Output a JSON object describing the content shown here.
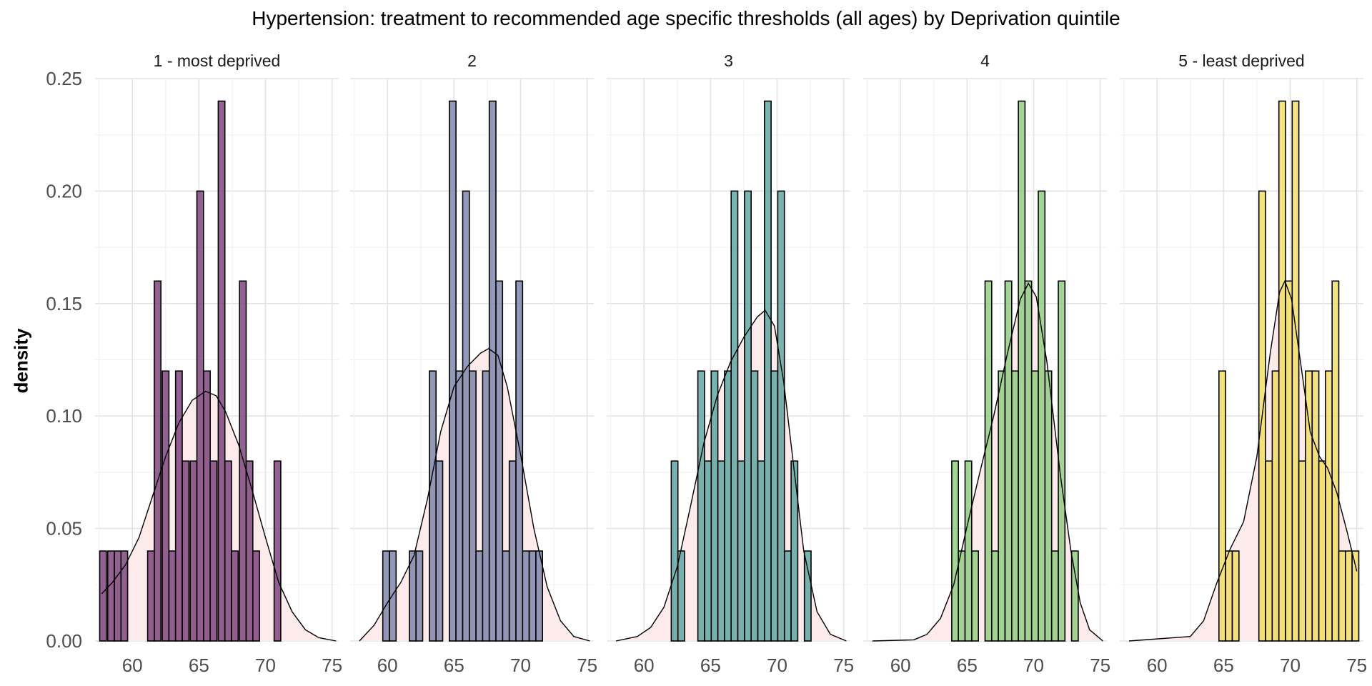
{
  "chart_data": {
    "type": "bar",
    "title": "Hypertension: treatment to recommended age specific thresholds (all ages) by Deprivation quintile",
    "xlabel": "",
    "ylabel": "density",
    "xlim": [
      57.2,
      75.5
    ],
    "ylim": [
      0,
      0.25
    ],
    "x_ticks": [
      "60",
      "65",
      "70",
      "75"
    ],
    "y_ticks": [
      "0.00",
      "0.05",
      "0.10",
      "0.15",
      "0.20",
      "0.25"
    ],
    "grid": true,
    "density_fill": "#fdeaea",
    "panels": [
      {
        "label": "1 - most deprived",
        "color": "#7a3f7a",
        "bins": [
          {
            "x": 57.8,
            "y": 0.04
          },
          {
            "x": 58.4,
            "y": 0.04
          },
          {
            "x": 58.9,
            "y": 0.04
          },
          {
            "x": 59.4,
            "y": 0.04
          },
          {
            "x": 61.4,
            "y": 0.04
          },
          {
            "x": 61.9,
            "y": 0.16
          },
          {
            "x": 62.5,
            "y": 0.12
          },
          {
            "x": 63.0,
            "y": 0.04
          },
          {
            "x": 63.5,
            "y": 0.12
          },
          {
            "x": 64.0,
            "y": 0.08
          },
          {
            "x": 64.6,
            "y": 0.08
          },
          {
            "x": 65.1,
            "y": 0.2
          },
          {
            "x": 65.6,
            "y": 0.12
          },
          {
            "x": 66.1,
            "y": 0.08
          },
          {
            "x": 66.7,
            "y": 0.24
          },
          {
            "x": 67.2,
            "y": 0.08
          },
          {
            "x": 67.7,
            "y": 0.04
          },
          {
            "x": 68.3,
            "y": 0.16
          },
          {
            "x": 68.8,
            "y": 0.08
          },
          {
            "x": 69.3,
            "y": 0.04
          },
          {
            "x": 70.9,
            "y": 0.08
          }
        ],
        "density": [
          [
            57.7,
            0.021
          ],
          [
            58.5,
            0.026
          ],
          [
            59.5,
            0.034
          ],
          [
            60.5,
            0.046
          ],
          [
            61.5,
            0.064
          ],
          [
            62.5,
            0.082
          ],
          [
            63.5,
            0.097
          ],
          [
            64.5,
            0.107
          ],
          [
            65.5,
            0.111
          ],
          [
            66.3,
            0.109
          ],
          [
            67.0,
            0.102
          ],
          [
            68.0,
            0.087
          ],
          [
            69.0,
            0.067
          ],
          [
            70.0,
            0.046
          ],
          [
            71.0,
            0.026
          ],
          [
            72.0,
            0.013
          ],
          [
            73.0,
            0.005
          ],
          [
            74.0,
            0.0015
          ],
          [
            75.3,
            0.0
          ]
        ]
      },
      {
        "label": "2",
        "color": "#7b83a8",
        "bins": [
          {
            "x": 59.9,
            "y": 0.04
          },
          {
            "x": 60.4,
            "y": 0.04
          },
          {
            "x": 61.9,
            "y": 0.04
          },
          {
            "x": 62.4,
            "y": 0.04
          },
          {
            "x": 63.4,
            "y": 0.12
          },
          {
            "x": 63.9,
            "y": 0.08
          },
          {
            "x": 64.9,
            "y": 0.24
          },
          {
            "x": 65.4,
            "y": 0.12
          },
          {
            "x": 65.9,
            "y": 0.2
          },
          {
            "x": 66.4,
            "y": 0.12
          },
          {
            "x": 66.9,
            "y": 0.04
          },
          {
            "x": 67.4,
            "y": 0.12
          },
          {
            "x": 67.9,
            "y": 0.24
          },
          {
            "x": 68.4,
            "y": 0.16
          },
          {
            "x": 68.9,
            "y": 0.04
          },
          {
            "x": 69.4,
            "y": 0.08
          },
          {
            "x": 69.9,
            "y": 0.16
          },
          {
            "x": 70.4,
            "y": 0.04
          },
          {
            "x": 70.9,
            "y": 0.04
          },
          {
            "x": 71.4,
            "y": 0.04
          }
        ],
        "density": [
          [
            57.9,
            0.0
          ],
          [
            59.0,
            0.007
          ],
          [
            60.0,
            0.017
          ],
          [
            61.0,
            0.026
          ],
          [
            62.0,
            0.038
          ],
          [
            63.0,
            0.063
          ],
          [
            64.0,
            0.093
          ],
          [
            65.0,
            0.113
          ],
          [
            66.0,
            0.122
          ],
          [
            67.0,
            0.128
          ],
          [
            67.6,
            0.13
          ],
          [
            68.3,
            0.127
          ],
          [
            69.0,
            0.113
          ],
          [
            70.0,
            0.083
          ],
          [
            71.0,
            0.05
          ],
          [
            72.0,
            0.024
          ],
          [
            73.0,
            0.009
          ],
          [
            74.0,
            0.002
          ],
          [
            75.2,
            0.0
          ]
        ]
      },
      {
        "label": "3",
        "color": "#5aa3a0",
        "bins": [
          {
            "x": 62.3,
            "y": 0.08
          },
          {
            "x": 62.8,
            "y": 0.04
          },
          {
            "x": 64.3,
            "y": 0.12
          },
          {
            "x": 64.8,
            "y": 0.08
          },
          {
            "x": 65.3,
            "y": 0.12
          },
          {
            "x": 65.8,
            "y": 0.08
          },
          {
            "x": 66.3,
            "y": 0.12
          },
          {
            "x": 66.8,
            "y": 0.2
          },
          {
            "x": 67.3,
            "y": 0.08
          },
          {
            "x": 67.8,
            "y": 0.2
          },
          {
            "x": 68.3,
            "y": 0.12
          },
          {
            "x": 68.8,
            "y": 0.08
          },
          {
            "x": 69.3,
            "y": 0.24
          },
          {
            "x": 69.8,
            "y": 0.12
          },
          {
            "x": 70.3,
            "y": 0.2
          },
          {
            "x": 70.8,
            "y": 0.04
          },
          {
            "x": 71.3,
            "y": 0.08
          },
          {
            "x": 72.3,
            "y": 0.04
          }
        ],
        "density": [
          [
            57.9,
            0.0
          ],
          [
            59.5,
            0.002
          ],
          [
            60.5,
            0.006
          ],
          [
            61.5,
            0.015
          ],
          [
            62.5,
            0.033
          ],
          [
            63.5,
            0.06
          ],
          [
            64.5,
            0.088
          ],
          [
            65.5,
            0.109
          ],
          [
            66.5,
            0.124
          ],
          [
            67.5,
            0.135
          ],
          [
            68.5,
            0.144
          ],
          [
            69.1,
            0.147
          ],
          [
            69.8,
            0.14
          ],
          [
            70.5,
            0.115
          ],
          [
            71.3,
            0.075
          ],
          [
            72.0,
            0.04
          ],
          [
            73.0,
            0.013
          ],
          [
            74.0,
            0.003
          ],
          [
            75.2,
            0.0
          ]
        ]
      },
      {
        "label": "4",
        "color": "#8fcc7f",
        "bins": [
          {
            "x": 64.1,
            "y": 0.08
          },
          {
            "x": 64.6,
            "y": 0.04
          },
          {
            "x": 65.1,
            "y": 0.08
          },
          {
            "x": 65.6,
            "y": 0.04
          },
          {
            "x": 66.6,
            "y": 0.16
          },
          {
            "x": 67.1,
            "y": 0.04
          },
          {
            "x": 67.6,
            "y": 0.12
          },
          {
            "x": 68.1,
            "y": 0.16
          },
          {
            "x": 68.6,
            "y": 0.12
          },
          {
            "x": 69.1,
            "y": 0.24
          },
          {
            "x": 69.6,
            "y": 0.16
          },
          {
            "x": 70.1,
            "y": 0.12
          },
          {
            "x": 70.6,
            "y": 0.2
          },
          {
            "x": 71.1,
            "y": 0.12
          },
          {
            "x": 71.6,
            "y": 0.04
          },
          {
            "x": 72.1,
            "y": 0.16
          },
          {
            "x": 73.1,
            "y": 0.04
          }
        ],
        "density": [
          [
            57.9,
            0.0
          ],
          [
            61.0,
            0.0005
          ],
          [
            62.0,
            0.003
          ],
          [
            63.0,
            0.01
          ],
          [
            64.0,
            0.025
          ],
          [
            65.0,
            0.051
          ],
          [
            66.0,
            0.076
          ],
          [
            67.0,
            0.1
          ],
          [
            68.0,
            0.127
          ],
          [
            69.0,
            0.152
          ],
          [
            69.6,
            0.159
          ],
          [
            70.2,
            0.153
          ],
          [
            71.0,
            0.124
          ],
          [
            72.0,
            0.074
          ],
          [
            72.8,
            0.04
          ],
          [
            73.5,
            0.017
          ],
          [
            74.2,
            0.005
          ],
          [
            75.2,
            0.0
          ]
        ]
      },
      {
        "label": "5 - least deprived",
        "color": "#f2de63",
        "bins": [
          {
            "x": 64.9,
            "y": 0.12
          },
          {
            "x": 65.4,
            "y": 0.04
          },
          {
            "x": 65.9,
            "y": 0.04
          },
          {
            "x": 67.9,
            "y": 0.2
          },
          {
            "x": 68.4,
            "y": 0.08
          },
          {
            "x": 68.9,
            "y": 0.12
          },
          {
            "x": 69.4,
            "y": 0.24
          },
          {
            "x": 69.9,
            "y": 0.16
          },
          {
            "x": 70.4,
            "y": 0.24
          },
          {
            "x": 70.9,
            "y": 0.08
          },
          {
            "x": 71.4,
            "y": 0.12
          },
          {
            "x": 71.9,
            "y": 0.12
          },
          {
            "x": 72.4,
            "y": 0.08
          },
          {
            "x": 72.9,
            "y": 0.12
          },
          {
            "x": 73.4,
            "y": 0.16
          },
          {
            "x": 73.9,
            "y": 0.04
          },
          {
            "x": 74.4,
            "y": 0.04
          },
          {
            "x": 74.9,
            "y": 0.04
          }
        ],
        "density": [
          [
            57.9,
            0.0
          ],
          [
            62.5,
            0.002
          ],
          [
            63.5,
            0.009
          ],
          [
            64.5,
            0.026
          ],
          [
            65.5,
            0.041
          ],
          [
            66.5,
            0.053
          ],
          [
            67.5,
            0.082
          ],
          [
            68.5,
            0.128
          ],
          [
            69.2,
            0.155
          ],
          [
            69.6,
            0.16
          ],
          [
            70.1,
            0.152
          ],
          [
            70.8,
            0.123
          ],
          [
            71.5,
            0.093
          ],
          [
            72.2,
            0.082
          ],
          [
            72.8,
            0.077
          ],
          [
            73.5,
            0.066
          ],
          [
            74.3,
            0.048
          ],
          [
            75.0,
            0.031
          ]
        ]
      }
    ]
  }
}
